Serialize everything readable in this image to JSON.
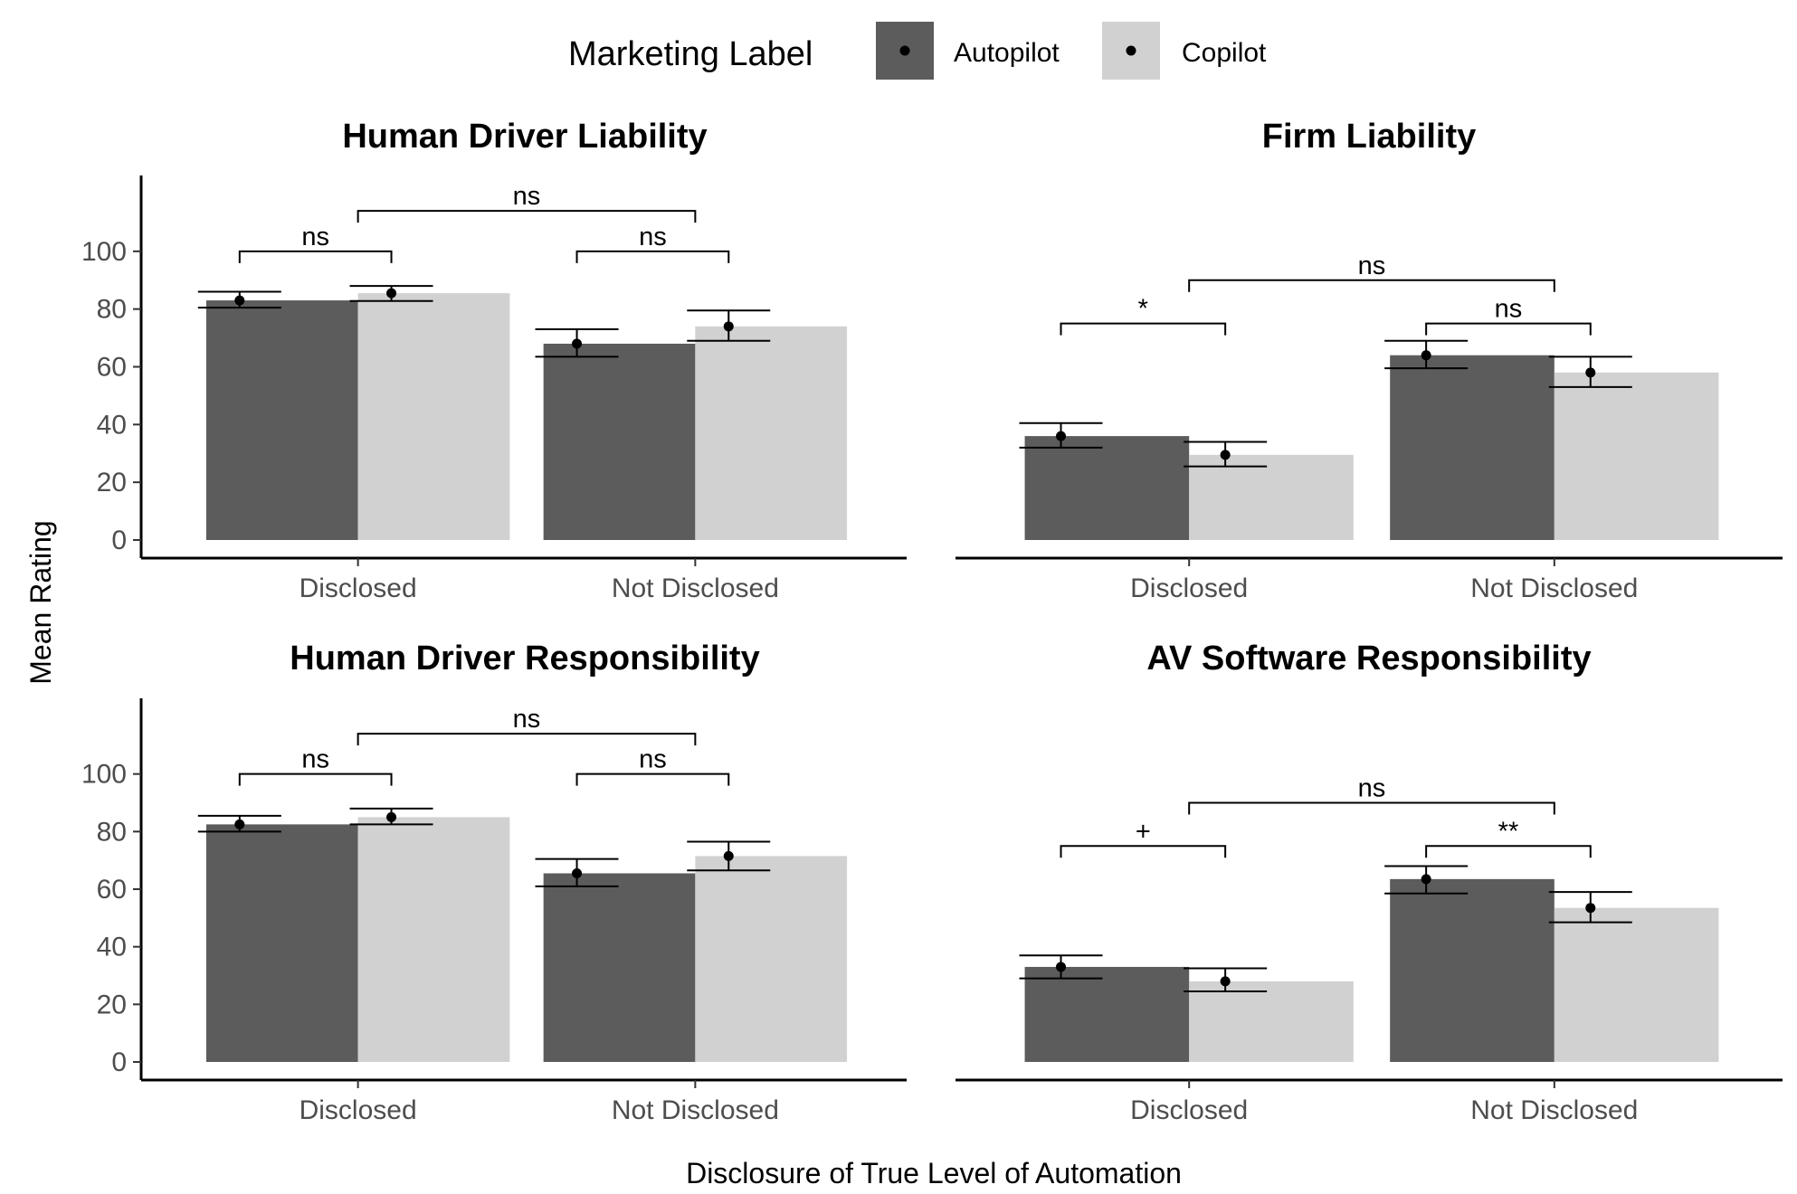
{
  "legend": {
    "title": "Marketing Label",
    "placement": "top",
    "entries": [
      {
        "label": "Autopilot",
        "color": "#5c5c5c"
      },
      {
        "label": "Copilot",
        "color": "#d1d1d1"
      }
    ]
  },
  "axis_labels": {
    "x": "Disclosure of True Level of Automation",
    "y": "Mean Rating"
  },
  "chart_data": [
    {
      "type": "bar",
      "title": "Human Driver Liability",
      "categories": [
        "Disclosed",
        "Not Disclosed"
      ],
      "ylim": [
        0,
        120
      ],
      "yticks": [
        0,
        20,
        40,
        60,
        80,
        100
      ],
      "y_axis_labels": true,
      "series": [
        {
          "name": "Autopilot",
          "values": [
            83,
            68
          ],
          "error_low": [
            80.5,
            63.5
          ],
          "error_high": [
            86,
            73
          ]
        },
        {
          "name": "Copilot",
          "values": [
            85.5,
            74
          ],
          "error_low": [
            82.8,
            69
          ],
          "error_high": [
            88,
            79.5
          ]
        }
      ],
      "comparisons": [
        {
          "label": "ns",
          "from": {
            "category": 0,
            "series": 0
          },
          "to": {
            "category": 0,
            "series": 1
          },
          "y": 100
        },
        {
          "label": "ns",
          "from": {
            "category": 1,
            "series": 0
          },
          "to": {
            "category": 1,
            "series": 1
          },
          "y": 100
        },
        {
          "label": "ns",
          "from": {
            "category": 0,
            "series": null
          },
          "to": {
            "category": 1,
            "series": null
          },
          "y": 114
        }
      ]
    },
    {
      "type": "bar",
      "title": "Firm Liability",
      "categories": [
        "Disclosed",
        "Not Disclosed"
      ],
      "ylim": [
        0,
        120
      ],
      "yticks": [
        0,
        20,
        40,
        60,
        80,
        100
      ],
      "y_axis_labels": false,
      "series": [
        {
          "name": "Autopilot",
          "values": [
            36,
            64
          ],
          "error_low": [
            32,
            59.5
          ],
          "error_high": [
            40.5,
            69
          ]
        },
        {
          "name": "Copilot",
          "values": [
            29.5,
            58
          ],
          "error_low": [
            25.5,
            53
          ],
          "error_high": [
            34,
            63.5
          ]
        }
      ],
      "comparisons": [
        {
          "label": "*",
          "from": {
            "category": 0,
            "series": 0
          },
          "to": {
            "category": 0,
            "series": 1
          },
          "y": 75
        },
        {
          "label": "ns",
          "from": {
            "category": 1,
            "series": 0
          },
          "to": {
            "category": 1,
            "series": 1
          },
          "y": 75
        },
        {
          "label": "ns",
          "from": {
            "category": 0,
            "series": null
          },
          "to": {
            "category": 1,
            "series": null
          },
          "y": 90
        }
      ]
    },
    {
      "type": "bar",
      "title": "Human Driver Responsibility",
      "categories": [
        "Disclosed",
        "Not Disclosed"
      ],
      "ylim": [
        0,
        120
      ],
      "yticks": [
        0,
        20,
        40,
        60,
        80,
        100
      ],
      "y_axis_labels": true,
      "series": [
        {
          "name": "Autopilot",
          "values": [
            82.5,
            65.5
          ],
          "error_low": [
            80,
            61
          ],
          "error_high": [
            85.5,
            70.5
          ]
        },
        {
          "name": "Copilot",
          "values": [
            85,
            71.5
          ],
          "error_low": [
            82.5,
            66.5
          ],
          "error_high": [
            88,
            76.5
          ]
        }
      ],
      "comparisons": [
        {
          "label": "ns",
          "from": {
            "category": 0,
            "series": 0
          },
          "to": {
            "category": 0,
            "series": 1
          },
          "y": 100
        },
        {
          "label": "ns",
          "from": {
            "category": 1,
            "series": 0
          },
          "to": {
            "category": 1,
            "series": 1
          },
          "y": 100
        },
        {
          "label": "ns",
          "from": {
            "category": 0,
            "series": null
          },
          "to": {
            "category": 1,
            "series": null
          },
          "y": 114
        }
      ]
    },
    {
      "type": "bar",
      "title": "AV Software Responsibility",
      "categories": [
        "Disclosed",
        "Not Disclosed"
      ],
      "ylim": [
        0,
        120
      ],
      "yticks": [
        0,
        20,
        40,
        60,
        80,
        100
      ],
      "y_axis_labels": false,
      "series": [
        {
          "name": "Autopilot",
          "values": [
            33,
            63.5
          ],
          "error_low": [
            29,
            58.5
          ],
          "error_high": [
            37,
            68
          ]
        },
        {
          "name": "Copilot",
          "values": [
            28,
            53.5
          ],
          "error_low": [
            24.5,
            48.5
          ],
          "error_high": [
            32.5,
            59
          ]
        }
      ],
      "comparisons": [
        {
          "label": "+",
          "from": {
            "category": 0,
            "series": 0
          },
          "to": {
            "category": 0,
            "series": 1
          },
          "y": 75
        },
        {
          "label": "**",
          "from": {
            "category": 1,
            "series": 0
          },
          "to": {
            "category": 1,
            "series": 1
          },
          "y": 75
        },
        {
          "label": "ns",
          "from": {
            "category": 0,
            "series": null
          },
          "to": {
            "category": 1,
            "series": null
          },
          "y": 90
        }
      ]
    }
  ]
}
